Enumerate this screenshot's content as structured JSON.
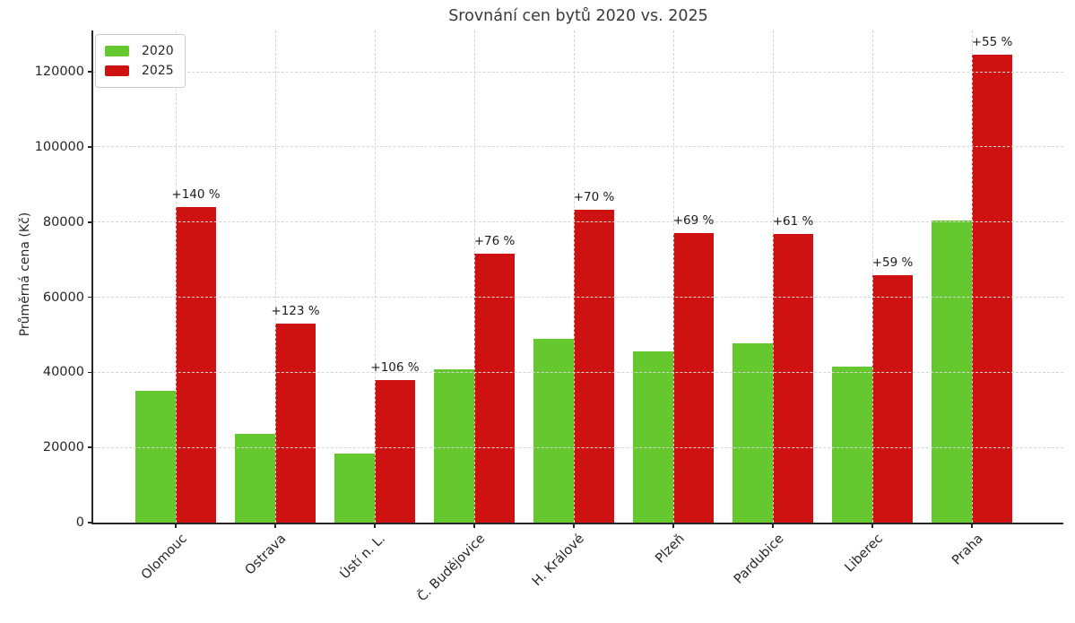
{
  "chart_data": {
    "type": "bar",
    "title": "Srovnání cen bytů 2020 vs. 2025",
    "ylabel": "Průměrná cena (Kč)",
    "xlabel": "",
    "categories": [
      "Olomouc",
      "Ostrava",
      "Ústí n. L.",
      "Č. Budějovice",
      "H. Králové",
      "Plzeň",
      "Pardubice",
      "Liberec",
      "Praha"
    ],
    "series": [
      {
        "name": "2020",
        "color": "#65c82f",
        "values": [
          35000,
          23700,
          18400,
          40700,
          49000,
          45600,
          47700,
          41400,
          80300
        ]
      },
      {
        "name": "2025",
        "color": "#ce1111",
        "values": [
          84000,
          52900,
          37900,
          71600,
          83300,
          77100,
          76800,
          65800,
          124500
        ]
      }
    ],
    "annotations": [
      "+140 %",
      "+123 %",
      "+106 %",
      "+76 %",
      "+70 %",
      "+69 %",
      "+61 %",
      "+59 %",
      "+55 %"
    ],
    "yticks": [
      0,
      20000,
      40000,
      60000,
      80000,
      100000,
      120000
    ],
    "ylim": [
      0,
      131000
    ],
    "grid": "dashed light gray, horizontal at yticks and vertical at category centers, drawn above bars",
    "legend_position": "upper left",
    "spines": "left and bottom only",
    "background_color": "#ffffff",
    "text_color": "#262626"
  }
}
